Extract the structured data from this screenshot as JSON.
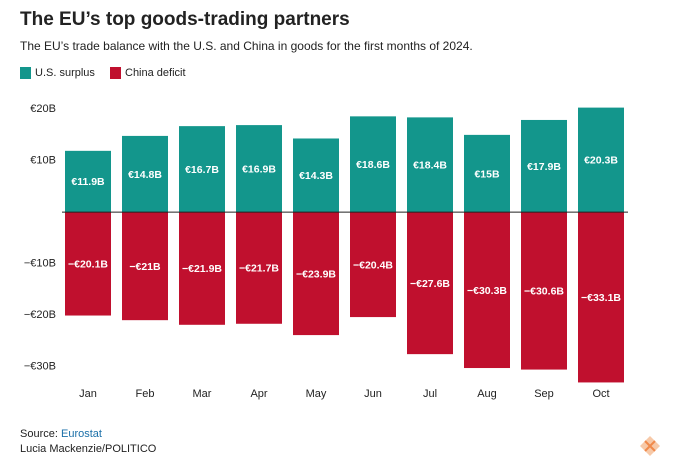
{
  "chart_data": {
    "type": "bar",
    "title": "The EU’s top goods-trading partners",
    "subtitle": "The EU’s trade balance with the U.S. and China in goods for the first months of 2024.",
    "categories": [
      "Jan",
      "Feb",
      "Mar",
      "Apr",
      "May",
      "Jun",
      "Jul",
      "Aug",
      "Sep",
      "Oct"
    ],
    "series": [
      {
        "name": "U.S. surplus",
        "color": "#13968c",
        "values": [
          11.9,
          14.8,
          16.7,
          16.9,
          14.3,
          18.6,
          18.4,
          15,
          17.9,
          20.3
        ],
        "value_labels": [
          "€11.9B",
          "€14.8B",
          "€16.7B",
          "€16.9B",
          "€14.3B",
          "€18.6B",
          "€18.4B",
          "€15B",
          "€17.9B",
          "€20.3B"
        ]
      },
      {
        "name": "China deficit",
        "color": "#c0102e",
        "values": [
          -20.1,
          -21,
          -21.9,
          -21.7,
          -23.9,
          -20.4,
          -27.6,
          -30.3,
          -30.6,
          -33.1
        ],
        "value_labels": [
          "−€20.1B",
          "−€21B",
          "−€21.9B",
          "−€21.7B",
          "−€23.9B",
          "−€20.4B",
          "−€27.6B",
          "−€30.3B",
          "−€30.6B",
          "−€33.1B"
        ]
      }
    ],
    "ylim": [
      -33.5,
      21
    ],
    "yticks": [
      {
        "value": 20,
        "label": "€20B"
      },
      {
        "value": 10,
        "label": "€10B"
      },
      {
        "value": -10,
        "label": "−€10B"
      },
      {
        "value": -20,
        "label": "−€20B"
      },
      {
        "value": -30,
        "label": "−€30B"
      }
    ],
    "grid": false,
    "source_label": "Source:",
    "source": "Eurostat",
    "credit": "Lucia Mackenzie/POLITICO"
  }
}
